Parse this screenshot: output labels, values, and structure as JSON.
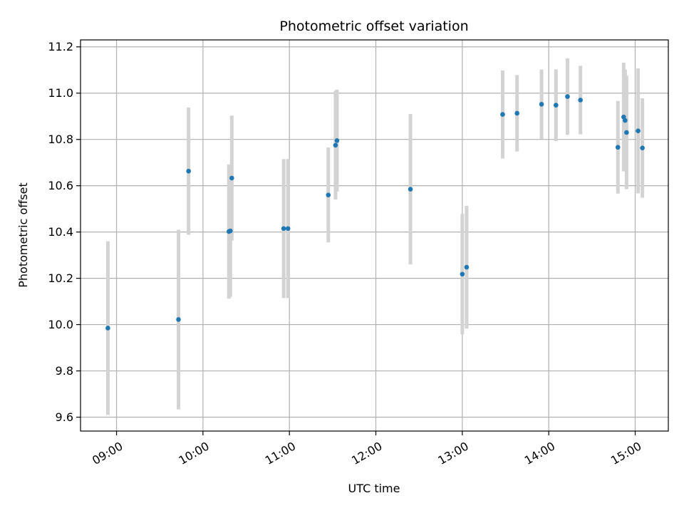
{
  "chart_data": {
    "type": "scatter",
    "title": "Photometric offset variation",
    "xlabel": "UTC time",
    "ylabel": "Photometric offset",
    "x_tick_labels": [
      "09:00",
      "10:00",
      "11:00",
      "12:00",
      "13:00",
      "14:00",
      "15:00"
    ],
    "y_tick_labels": [
      "9.6",
      "9.8",
      "10.0",
      "10.2",
      "10.4",
      "10.6",
      "10.8",
      "11.0",
      "11.2"
    ],
    "grid": true,
    "colors": {
      "points": "#1f77b4",
      "errorbars": "#d3d3d3",
      "grid": "#b0b0b0"
    },
    "points": [
      {
        "time": "08:54",
        "value": 9.985,
        "error": 0.375
      },
      {
        "time": "09:43",
        "value": 10.022,
        "error": 0.388
      },
      {
        "time": "09:50",
        "value": 10.663,
        "error": 0.275
      },
      {
        "time": "10:18",
        "value": 10.402,
        "error": 0.29
      },
      {
        "time": "10:19",
        "value": 10.405,
        "error": 0.285
      },
      {
        "time": "10:20",
        "value": 10.633,
        "error": 0.27
      },
      {
        "time": "10:56",
        "value": 10.415,
        "error": 0.3
      },
      {
        "time": "10:59",
        "value": 10.415,
        "error": 0.3
      },
      {
        "time": "11:27",
        "value": 10.56,
        "error": 0.205
      },
      {
        "time": "11:32",
        "value": 10.775,
        "error": 0.235
      },
      {
        "time": "11:33",
        "value": 10.795,
        "error": 0.22
      },
      {
        "time": "12:24",
        "value": 10.585,
        "error": 0.325
      },
      {
        "time": "13:00",
        "value": 10.218,
        "error": 0.26
      },
      {
        "time": "13:03",
        "value": 10.248,
        "error": 0.265
      },
      {
        "time": "13:28",
        "value": 10.908,
        "error": 0.19
      },
      {
        "time": "13:38",
        "value": 10.913,
        "error": 0.165
      },
      {
        "time": "13:55",
        "value": 10.952,
        "error": 0.15
      },
      {
        "time": "14:05",
        "value": 10.948,
        "error": 0.155
      },
      {
        "time": "14:13",
        "value": 10.985,
        "error": 0.165
      },
      {
        "time": "14:22",
        "value": 10.97,
        "error": 0.148
      },
      {
        "time": "14:48",
        "value": 10.766,
        "error": 0.2
      },
      {
        "time": "14:52",
        "value": 10.897,
        "error": 0.235
      },
      {
        "time": "14:53",
        "value": 10.882,
        "error": 0.22
      },
      {
        "time": "14:54",
        "value": 10.83,
        "error": 0.245
      },
      {
        "time": "15:02",
        "value": 10.837,
        "error": 0.27
      },
      {
        "time": "15:05",
        "value": 10.763,
        "error": 0.215
      }
    ],
    "x_range": [
      "08:35",
      "15:23"
    ],
    "y_range": [
      9.54,
      11.23
    ]
  }
}
